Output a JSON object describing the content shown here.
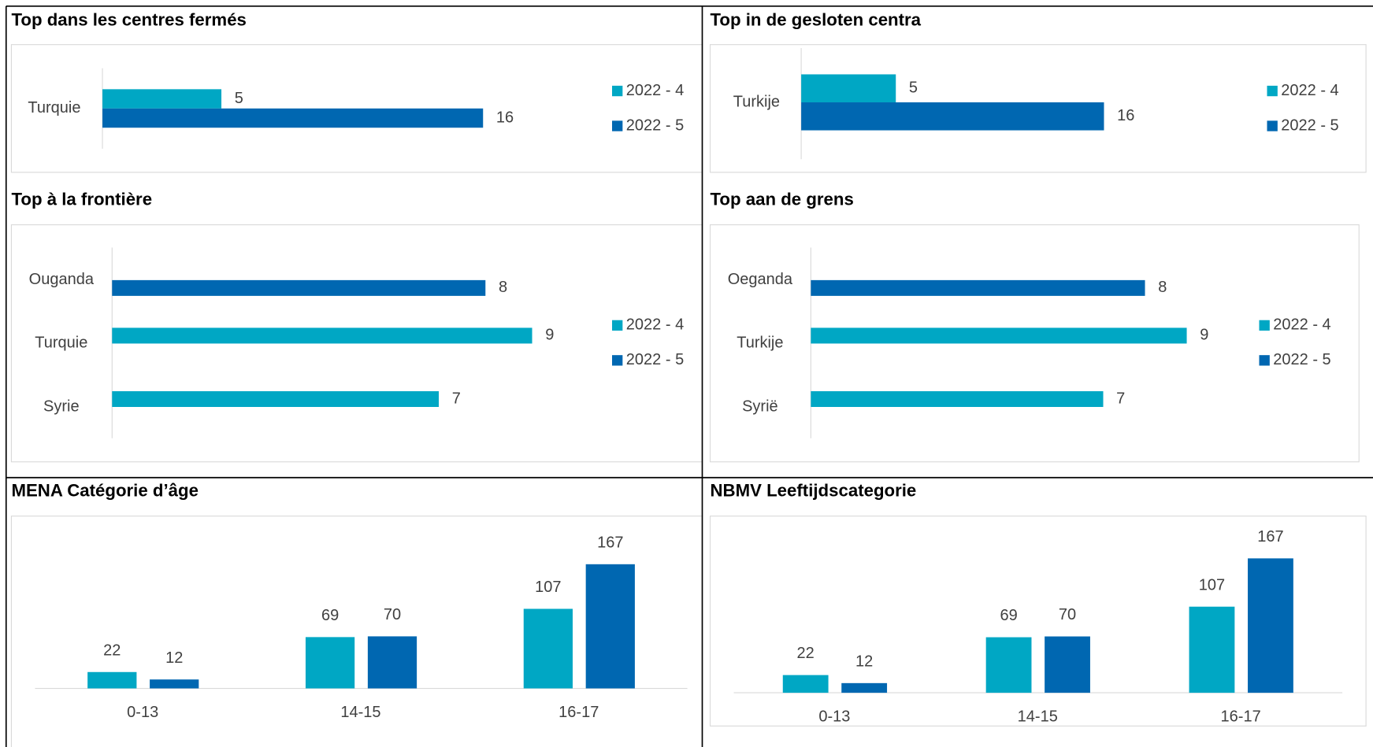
{
  "chart_data": [
    {
      "type": "bar",
      "orientation": "horizontal",
      "title": "Top dans les centres fermés",
      "categories": [
        "Turquie"
      ],
      "series": [
        {
          "name": "2022 - 4",
          "color": "#00a7c4",
          "values": [
            5
          ]
        },
        {
          "name": "2022 - 5",
          "color": "#0067b1",
          "values": [
            16
          ]
        }
      ],
      "xlim": [
        0,
        18
      ],
      "legend": "right"
    },
    {
      "type": "bar",
      "orientation": "horizontal",
      "title": "Top in de gesloten centra",
      "categories": [
        "Turkije"
      ],
      "series": [
        {
          "name": "2022 - 4",
          "color": "#00a7c4",
          "values": [
            5
          ]
        },
        {
          "name": "2022 - 5",
          "color": "#0067b1",
          "values": [
            16
          ]
        }
      ],
      "xlim": [
        0,
        18
      ],
      "legend": "right"
    },
    {
      "type": "bar",
      "orientation": "horizontal",
      "title": "Top à la frontière",
      "categories": [
        "Ouganda",
        "Turquie",
        "Syrie"
      ],
      "series": [
        {
          "name": "2022 - 4",
          "color": "#00a7c4",
          "values": [
            null,
            9,
            7
          ]
        },
        {
          "name": "2022 - 5",
          "color": "#0067b1",
          "values": [
            8,
            null,
            null
          ]
        }
      ],
      "xlim": [
        0,
        10
      ],
      "legend": "right"
    },
    {
      "type": "bar",
      "orientation": "horizontal",
      "title": "Top aan de grens",
      "categories": [
        "Oeganda",
        "Turkije",
        "Syrië"
      ],
      "series": [
        {
          "name": "2022 - 4",
          "color": "#00a7c4",
          "values": [
            null,
            9,
            7
          ]
        },
        {
          "name": "2022 - 5",
          "color": "#0067b1",
          "values": [
            8,
            null,
            null
          ]
        }
      ],
      "xlim": [
        0,
        10
      ],
      "legend": "right"
    },
    {
      "type": "bar",
      "title": "MENA Catégorie d’âge",
      "categories": [
        "0-13",
        "14-15",
        "16-17"
      ],
      "series": [
        {
          "color": "#00a7c4",
          "values": [
            22,
            69,
            107
          ]
        },
        {
          "color": "#0067b1",
          "values": [
            12,
            70,
            167
          ]
        }
      ],
      "ylim": [
        0,
        200
      ]
    },
    {
      "type": "bar",
      "title": "NBMV Leeftijdscategorie",
      "categories": [
        "0-13",
        "14-15",
        "16-17"
      ],
      "series": [
        {
          "color": "#00a7c4",
          "values": [
            22,
            69,
            107
          ]
        },
        {
          "color": "#0067b1",
          "values": [
            12,
            70,
            167
          ]
        }
      ],
      "ylim": [
        0,
        200
      ]
    }
  ]
}
